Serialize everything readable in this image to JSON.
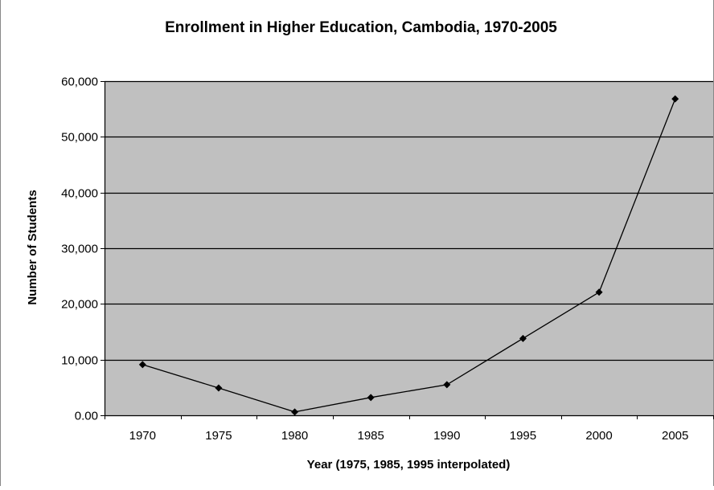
{
  "chart_data": {
    "type": "line",
    "title": "Enrollment in Higher Education, Cambodia, 1970-2005",
    "xlabel": "Year (1975, 1985, 1995 interpolated)",
    "ylabel": "Number of Students",
    "categories": [
      "1970",
      "1975",
      "1980",
      "1985",
      "1990",
      "1995",
      "2000",
      "2005"
    ],
    "series": [
      {
        "values": [
          9100,
          4900,
          600,
          3200,
          5500,
          13800,
          22100,
          56800
        ]
      }
    ],
    "ylim": [
      0,
      60000
    ],
    "yticks": [
      0,
      10000,
      20000,
      30000,
      40000,
      50000,
      60000
    ],
    "ytick_labels": [
      "0.00",
      "10,000",
      "20,000",
      "30,000",
      "40,000",
      "50,000",
      "60,000"
    ],
    "grid": "horizontal",
    "legend": "none",
    "colors": {
      "plot_background": "#c0c0c0",
      "grid": "#000000",
      "line": "#000000",
      "marker": "#000000"
    },
    "marker": "diamond"
  }
}
